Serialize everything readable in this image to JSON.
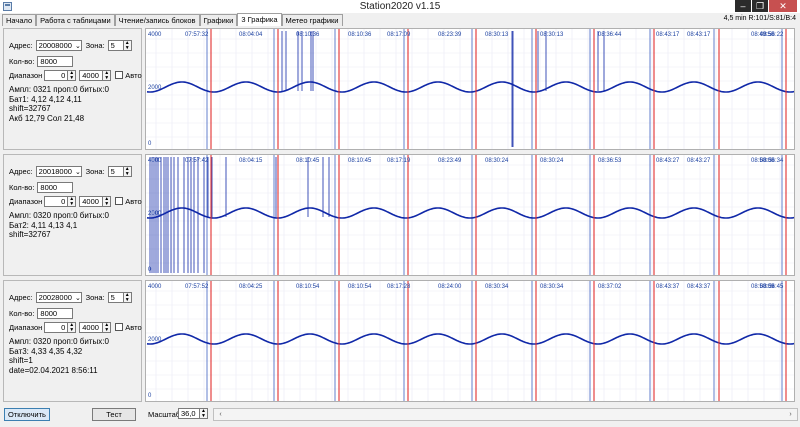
{
  "window": {
    "title": "Station2020 v1.15",
    "status_right": "4,5 min R:101/S:81/B:4"
  },
  "tabs": [
    "Начало",
    "Работа с таблицами",
    "Чтение/запись блоков",
    "Графики",
    "3 Графика",
    "Метео графики"
  ],
  "active_tab": 4,
  "labels": {
    "address": "Адрес:",
    "zone": "Зона:",
    "count": "Кол-во:",
    "range": "Диапазон",
    "auto": "Авто"
  },
  "panels": [
    {
      "address": "20008000",
      "zone": "5",
      "count": "8000",
      "range_from": "0",
      "range_to": "4000",
      "info": [
        "Ампл: 0321 проп:0 битых:0",
        "Бат1: 4,12 4,12 4,11",
        " shift=32767",
        "Акб 12,79 Сол 21,48"
      ]
    },
    {
      "address": "20018000",
      "zone": "5",
      "count": "8000",
      "range_from": "0",
      "range_to": "4000",
      "info": [
        "Ампл: 0320 проп:0 битых:0",
        "Бат2: 4,11 4,13 4,1",
        " shift=32767"
      ]
    },
    {
      "address": "20028000",
      "zone": "5",
      "count": "8000",
      "range_from": "0",
      "range_to": "4000",
      "info": [
        "Ампл: 0320 проп:0 битых:0",
        "Бат3: 4,33 4,35 4,32",
        " shift=1",
        " date=02.04.2021 8:56:11"
      ]
    }
  ],
  "charts": [
    {
      "times": [
        "07:57:32",
        "08:04:04",
        "08:10:36",
        "08:10:36",
        "08:17:09",
        "08:23:39",
        "08:30:13",
        "08:30:13",
        "08:36:44",
        "08:43:17",
        "08:43:17",
        "08:49:50",
        "08:56:22"
      ],
      "y_top": "4000",
      "y_mid": "2000",
      "y_bottom": "0"
    },
    {
      "times": [
        "07:57:42",
        "08:04:15",
        "08:10:45",
        "08:10:45",
        "08:17:19",
        "08:23:49",
        "08:30:24",
        "08:30:24",
        "08:36:53",
        "08:43:27",
        "08:43:27",
        "08:50:00",
        "08:56:34"
      ],
      "y_top": "4000",
      "y_mid": "2000",
      "y_bottom": "0"
    },
    {
      "times": [
        "07:57:52",
        "08:04:25",
        "08:10:54",
        "08:10:54",
        "08:17:28",
        "08:24:00",
        "08:30:34",
        "08:30:34",
        "08:37:02",
        "08:43:37",
        "08:43:37",
        "08:50:09",
        "08:56:45"
      ],
      "y_top": "4000",
      "y_mid": "2000",
      "y_bottom": "0"
    }
  ],
  "bottom": {
    "disconnect": "Отключить",
    "test": "Тест",
    "scale_label": "Масштаб:",
    "scale_value": "36,0"
  }
}
